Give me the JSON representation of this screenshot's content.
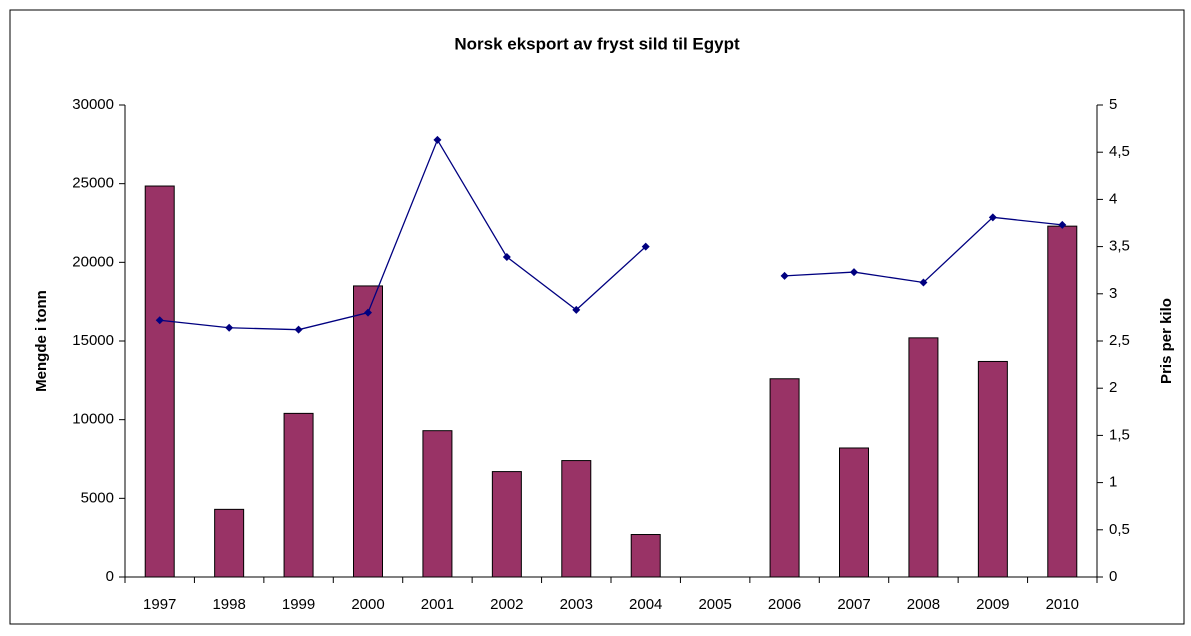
{
  "chart_data": {
    "type": "bar",
    "title": "Norsk eksport av fryst sild til Egypt",
    "y_label": "Mengde i tonn",
    "y2_label": "Pris per kilo",
    "categories": [
      "1997",
      "1998",
      "1999",
      "2000",
      "2001",
      "2002",
      "2003",
      "2004",
      "2005",
      "2006",
      "2007",
      "2008",
      "2009",
      "2010"
    ],
    "series": [
      {
        "type": "bar",
        "color": "#993366",
        "values": [
          24850,
          4300,
          10400,
          18500,
          9300,
          6700,
          7400,
          2700,
          null,
          12600,
          8200,
          15200,
          13700,
          22300
        ]
      },
      {
        "type": "line",
        "axis": "y2",
        "color": "#000080",
        "values": [
          2.72,
          2.64,
          2.62,
          2.8,
          4.63,
          3.39,
          2.83,
          3.5,
          null,
          3.19,
          3.23,
          3.12,
          3.81,
          3.73
        ]
      }
    ],
    "ylim": [
      0,
      30000
    ],
    "yticks": [
      0,
      5000,
      10000,
      15000,
      20000,
      25000,
      30000
    ],
    "y2lim": [
      0,
      5
    ],
    "y2ticks": [
      0,
      {
        "value": 0.5,
        "label": "0,5"
      },
      1,
      {
        "value": 1.5,
        "label": "1,5"
      },
      2,
      {
        "value": 2.5,
        "label": "2,5"
      },
      3,
      {
        "value": 3.5,
        "label": "3,5"
      },
      4,
      {
        "value": 4.5,
        "label": "4,5"
      },
      5
    ],
    "grid": false
  }
}
